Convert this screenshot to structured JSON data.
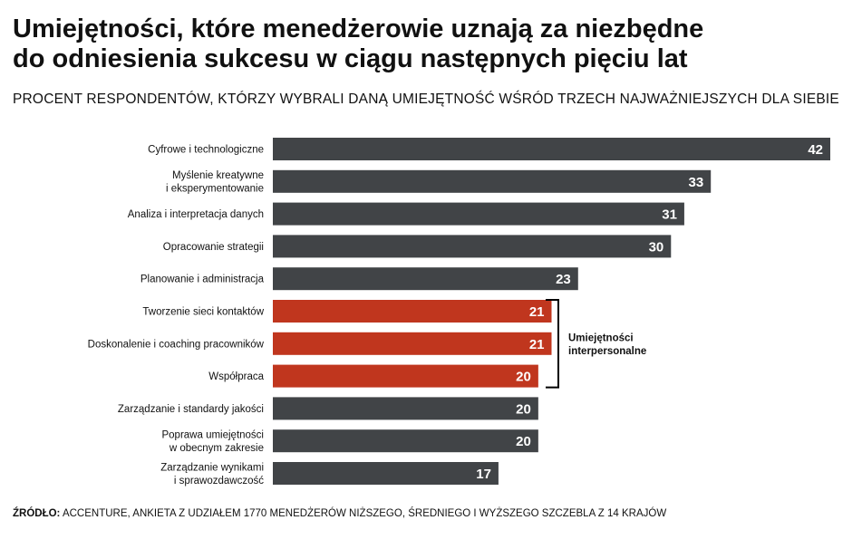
{
  "header": {
    "title_line1": "Umiejętności, które menedżerowie uznają za niezbędne",
    "title_line2": "do odniesienia sukcesu w ciągu następnych pięciu lat",
    "subtitle": "PROCENT RESPONDENTÓW, KTÓRZY WYBRALI DANĄ UMIEJĘTNOŚĆ WŚRÓD TRZECH NAJWAŻNIEJSZYCH DLA SIEBIE"
  },
  "colors": {
    "bar_default": "#414447",
    "bar_highlight": "#c0361e",
    "value_text": "#ffffff",
    "bracket": "#000000"
  },
  "chart_data": {
    "type": "bar",
    "orientation": "horizontal",
    "categories": [
      [
        "Cyfrowe i technologiczne"
      ],
      [
        "Myślenie kreatywne",
        "i eksperymentowanie"
      ],
      [
        "Analiza i interpretacja danych"
      ],
      [
        "Opracowanie strategii"
      ],
      [
        "Planowanie i administracja"
      ],
      [
        "Tworzenie sieci kontaktów"
      ],
      [
        "Doskonalenie i coaching pracowników"
      ],
      [
        "Współpraca"
      ],
      [
        "Zarządzanie i standardy jakości"
      ],
      [
        "Poprawa umiejętności",
        "w obecnym zakresie"
      ],
      [
        "Zarządzanie wynikami",
        "i sprawozdawczość"
      ]
    ],
    "values": [
      42,
      33,
      31,
      30,
      23,
      21,
      21,
      20,
      20,
      20,
      17
    ],
    "highlighted": [
      false,
      false,
      false,
      false,
      false,
      true,
      true,
      true,
      false,
      false,
      false
    ],
    "xlim": [
      0,
      42
    ],
    "group_annotation": {
      "label_lines": [
        "Umiejętności",
        "interpersonalne"
      ],
      "from_index": 5,
      "to_index": 7
    },
    "grid": false,
    "legend": "none"
  },
  "footer": {
    "source_label": "ŹRÓDŁO:",
    "source_text": " ACCENTURE, ANKIETA Z UDZIAŁEM 1770 MENEDŻERÓW NIŻSZEGO, ŚREDNIEGO I WYŻSZEGO SZCZEBLA Z 14 KRAJÓW"
  }
}
